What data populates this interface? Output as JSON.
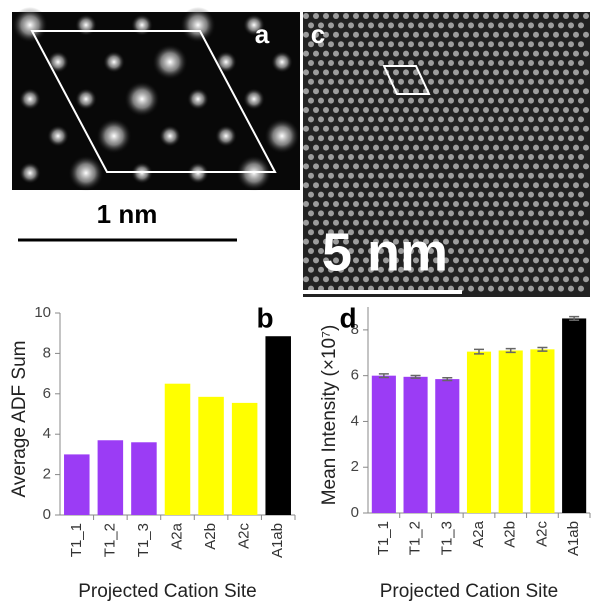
{
  "panels": {
    "a": {
      "label": "a",
      "scale_bar": "1 nm"
    },
    "c": {
      "label": "c",
      "scale_bar": "5 nm"
    }
  },
  "chart_data": [
    {
      "type": "bar",
      "label": "b",
      "ylabel": "Average ADF Sum",
      "xlabel": "Projected Cation Site",
      "categories": [
        "T1_1",
        "T1_2",
        "T1_3",
        "A2a",
        "A2b",
        "A2c",
        "A1ab"
      ],
      "values": [
        3.0,
        3.7,
        3.6,
        6.5,
        5.85,
        5.55,
        8.85
      ],
      "colors": [
        "#9b3cf5",
        "#9b3cf5",
        "#9b3cf5",
        "#ffff00",
        "#ffff00",
        "#ffff00",
        "#000000"
      ],
      "ylim": [
        0,
        10
      ],
      "yticks": [
        0,
        2,
        4,
        6,
        8,
        10
      ]
    },
    {
      "type": "bar",
      "label": "d",
      "ylabel": "Mean Intensity (×10⁷)",
      "xlabel": "Projected Cation Site",
      "categories": [
        "T1_1",
        "T1_2",
        "T1_3",
        "A2a",
        "A2b",
        "A2c",
        "A1ab"
      ],
      "values": [
        6.0,
        5.95,
        5.85,
        7.05,
        7.1,
        7.15,
        8.5
      ],
      "errors": [
        0.08,
        0.06,
        0.06,
        0.1,
        0.08,
        0.08,
        0.08
      ],
      "colors": [
        "#9b3cf5",
        "#9b3cf5",
        "#9b3cf5",
        "#ffff00",
        "#ffff00",
        "#ffff00",
        "#000000"
      ],
      "ylim": [
        0,
        9
      ],
      "yticks": [
        0,
        2,
        4,
        6,
        8
      ]
    }
  ]
}
